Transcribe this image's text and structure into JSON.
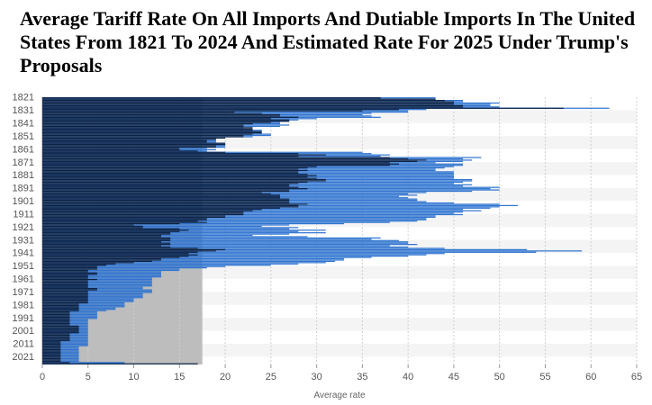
{
  "chart_data": {
    "type": "bar",
    "orientation": "horizontal",
    "title": "Average Tariff Rate On All Imports And Dutiable Imports In The United States From 1821 To 2024 And Estimated Rate For 2025 Under Trump's Proposals",
    "xlabel": "Average rate",
    "ylabel": "",
    "xlim": [
      0,
      65
    ],
    "x_ticks": [
      0,
      5,
      10,
      15,
      20,
      25,
      30,
      35,
      40,
      45,
      50,
      55,
      60,
      65
    ],
    "y_tick_labels": [
      "1821",
      "1831",
      "1841",
      "1851",
      "1861",
      "1871",
      "1881",
      "1891",
      "1901",
      "1911",
      "1921",
      "1931",
      "1941",
      "1951",
      "1961",
      "1971",
      "1981",
      "1991",
      "2001",
      "2011",
      "2021"
    ],
    "year_start": 1821,
    "year_end": 2025,
    "series": [
      {
        "name": "Dutiable imports",
        "color": "#2f74d0",
        "values": [
          43,
          43,
          46,
          46,
          50,
          49,
          49,
          50,
          62,
          42,
          40,
          40,
          36,
          35,
          36,
          37,
          30,
          28,
          27,
          26,
          26,
          27,
          26,
          22,
          22,
          24,
          24,
          24,
          25,
          25,
          23,
          19,
          19,
          19,
          19,
          20,
          20,
          20,
          20,
          18,
          19,
          18,
          35,
          36,
          38,
          37,
          48,
          46,
          47,
          46,
          43,
          46,
          46,
          45,
          44,
          43,
          43,
          45,
          45,
          45,
          45,
          45,
          45,
          47,
          47,
          46,
          45,
          47,
          46,
          50,
          49,
          50,
          47,
          42,
          40,
          41,
          39,
          40,
          41,
          41,
          42,
          45,
          50,
          52,
          50,
          49,
          46,
          48,
          46,
          45,
          46,
          43,
          43,
          42,
          42,
          41,
          38,
          33,
          27,
          24,
          28,
          27,
          31,
          28,
          31,
          27,
          23,
          29,
          37,
          36,
          39,
          40,
          40,
          41,
          38,
          40,
          44,
          53,
          59,
          54,
          44,
          42,
          40,
          36,
          33,
          33,
          32,
          31,
          28,
          25,
          20,
          18,
          15,
          15,
          13,
          13,
          13,
          13,
          13,
          12,
          12,
          12,
          12,
          12,
          12,
          12,
          11,
          11,
          12,
          12,
          12,
          11,
          11,
          11,
          11,
          10,
          10,
          10,
          9,
          9,
          9,
          9,
          8,
          8,
          7,
          6,
          6,
          6,
          6,
          6,
          6,
          5,
          5,
          5,
          5,
          5,
          5,
          5,
          5,
          5,
          5,
          5,
          5,
          5,
          5,
          5,
          5,
          5,
          5,
          5,
          5,
          5,
          4,
          4,
          4,
          4,
          4,
          4,
          4,
          4,
          4,
          4,
          4,
          4,
          9,
          9
        ]
      },
      {
        "name": "All imports",
        "color": "#0d2346",
        "values": [
          37,
          43,
          44,
          45,
          45,
          45,
          46,
          46,
          57,
          39,
          35,
          21,
          24,
          26,
          26,
          28,
          25,
          27,
          27,
          25,
          23,
          22,
          22,
          23,
          23,
          23,
          24,
          24,
          23,
          22,
          22,
          20,
          19,
          18,
          18,
          20,
          20,
          19,
          19,
          15,
          15,
          17,
          20,
          28,
          31,
          28,
          38,
          40,
          42,
          41,
          38,
          39,
          38,
          30,
          29,
          28,
          29,
          28,
          28,
          29,
          30,
          29,
          30,
          31,
          31,
          29,
          28,
          27,
          27,
          28,
          29,
          27,
          27,
          24,
          25,
          26,
          26,
          26,
          27,
          27,
          27,
          27,
          29,
          28,
          28,
          26,
          24,
          23,
          22,
          22,
          22,
          20,
          20,
          18,
          18,
          17,
          18,
          15,
          10,
          11,
          11,
          15,
          16,
          15,
          14,
          14,
          13,
          13,
          14,
          14,
          14,
          13,
          14,
          14,
          13,
          14,
          17,
          20,
          19,
          17,
          16,
          17,
          16,
          15,
          13,
          13,
          12,
          10,
          8,
          7,
          6,
          6,
          6,
          5,
          5,
          6,
          6,
          5,
          5,
          5,
          6,
          5,
          5,
          5,
          5,
          5,
          5,
          6,
          6,
          5,
          5,
          5,
          5,
          5,
          5,
          5,
          5,
          5,
          5,
          4,
          4,
          4,
          4,
          4,
          4,
          3,
          3,
          3,
          3,
          3,
          3,
          3,
          3,
          3,
          3,
          3,
          4,
          4,
          4,
          4,
          4,
          4,
          3,
          3,
          3,
          3,
          3,
          3,
          2,
          2,
          2,
          2,
          2,
          2,
          2,
          2,
          2,
          2,
          2,
          2,
          2,
          2,
          2,
          2,
          3,
          17
        ]
      }
    ],
    "legend": "none"
  }
}
